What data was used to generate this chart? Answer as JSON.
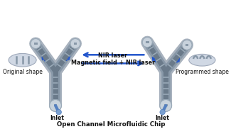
{
  "bg_color": "#ffffff",
  "chip_outer": "#a8b2be",
  "chip_mid": "#8898a8",
  "chip_inner": "#6a7a8a",
  "circle_face": "#c8d2dc",
  "circle_edge": "#9aaab8",
  "rib_color": "#9aaab8",
  "arrow_color": "#2255cc",
  "title_text": "Open Channel Microfluidic Chip",
  "label_mag": "Magnetic field + NIR laser",
  "label_nir": "NIR laser",
  "label_orig": "Original shape",
  "label_prog": "Programmed shape",
  "label_inlet": "Inlet",
  "title_fontsize": 6.2,
  "label_fontsize": 5.5,
  "mid_label_fontsize": 5.8
}
